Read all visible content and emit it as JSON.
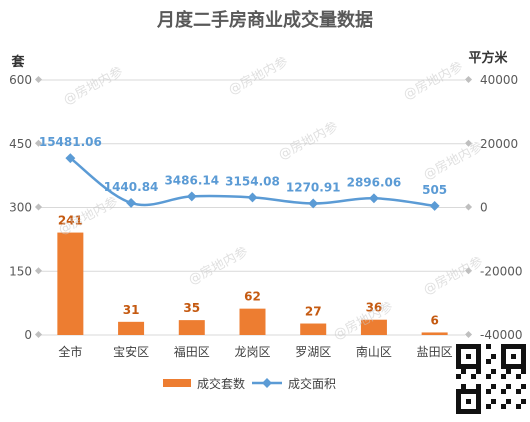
{
  "chart_data": {
    "type": "bar+line",
    "title": "月度二手房商业成交量数据",
    "categories": [
      "全市",
      "宝安区",
      "福田区",
      "龙岗区",
      "罗湖区",
      "南山区",
      "盐田区"
    ],
    "left_axis": {
      "unit_label": "套",
      "ylim": [
        0,
        600
      ],
      "ticks": [
        0,
        150,
        300,
        450,
        600
      ]
    },
    "right_axis": {
      "unit_label": "平方米",
      "ylim": [
        -40000,
        40000
      ],
      "ticks": [
        -40000,
        -20000,
        0,
        20000,
        40000
      ]
    },
    "series": [
      {
        "name": "成交套数",
        "type": "bar",
        "axis": "left",
        "color": "#ed7d31",
        "values": [
          241,
          31,
          35,
          62,
          27,
          36,
          6
        ]
      },
      {
        "name": "成交面积",
        "type": "line",
        "axis": "right",
        "color": "#5b9bd5",
        "smooth": true,
        "values": [
          15481.06,
          1440.84,
          3486.14,
          3154.08,
          1270.91,
          2896.06,
          505
        ]
      }
    ],
    "legend_position": "bottom",
    "grid": true
  },
  "watermark_text": "@房地内参"
}
